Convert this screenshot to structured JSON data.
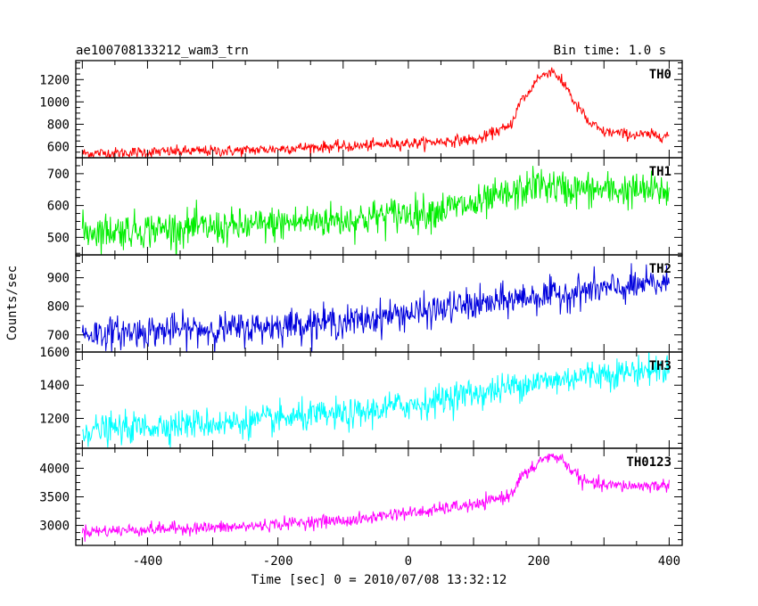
{
  "header": {
    "title": "ae100708133212_wam3_trn",
    "bin_time": "Bin time: 1.0 s"
  },
  "chart_data": {
    "type": "line",
    "xlabel": "Time [sec] 0 = 2010/07/08 13:32:12",
    "ylabel": "Counts/sec",
    "xlim": [
      -510,
      420
    ],
    "x_ticks": [
      -400,
      -200,
      0,
      200,
      400
    ],
    "x_range": [
      -500,
      400
    ],
    "bin_time_s": 1.0,
    "panels": [
      {
        "name": "TH0",
        "color": "#ff0000",
        "ylim": [
          500,
          1370
        ],
        "y_ticks": [
          600,
          800,
          1000,
          1200
        ],
        "anchors": [
          [
            -500,
            540
          ],
          [
            -300,
            560
          ],
          [
            -100,
            600
          ],
          [
            0,
            630
          ],
          [
            100,
            660
          ],
          [
            150,
            760
          ],
          [
            180,
            1050
          ],
          [
            200,
            1220
          ],
          [
            220,
            1280
          ],
          [
            240,
            1150
          ],
          [
            260,
            950
          ],
          [
            280,
            800
          ],
          [
            300,
            730
          ],
          [
            350,
            705
          ],
          [
            400,
            700
          ]
        ],
        "noise": 25
      },
      {
        "name": "TH1",
        "color": "#00ee00",
        "ylim": [
          445,
          750
        ],
        "y_ticks": [
          500,
          600,
          700
        ],
        "anchors": [
          [
            -500,
            520
          ],
          [
            -300,
            530
          ],
          [
            -100,
            555
          ],
          [
            0,
            575
          ],
          [
            100,
            600
          ],
          [
            150,
            630
          ],
          [
            200,
            665
          ],
          [
            250,
            650
          ],
          [
            300,
            648
          ],
          [
            400,
            645
          ]
        ],
        "noise": 28
      },
      {
        "name": "TH2",
        "color": "#0000dd",
        "ylim": [
          640,
          980
        ],
        "y_ticks": [
          700,
          800,
          900
        ],
        "anchors": [
          [
            -500,
            705
          ],
          [
            -300,
            720
          ],
          [
            -100,
            745
          ],
          [
            0,
            775
          ],
          [
            100,
            805
          ],
          [
            200,
            835
          ],
          [
            300,
            860
          ],
          [
            400,
            880
          ]
        ],
        "noise": 28
      },
      {
        "name": "TH3",
        "color": "#00ffff",
        "ylim": [
          1020,
          1600
        ],
        "y_ticks": [
          1200,
          1400,
          1600
        ],
        "anchors": [
          [
            -500,
            1130
          ],
          [
            -300,
            1170
          ],
          [
            -100,
            1220
          ],
          [
            0,
            1280
          ],
          [
            100,
            1350
          ],
          [
            200,
            1420
          ],
          [
            300,
            1470
          ],
          [
            400,
            1500
          ]
        ],
        "noise": 45
      },
      {
        "name": "TH0123",
        "color": "#ff00ff",
        "ylim": [
          2650,
          4350
        ],
        "y_ticks": [
          3000,
          3500,
          4000
        ],
        "anchors": [
          [
            -500,
            2900
          ],
          [
            -300,
            2960
          ],
          [
            -100,
            3080
          ],
          [
            0,
            3220
          ],
          [
            100,
            3350
          ],
          [
            150,
            3500
          ],
          [
            180,
            3900
          ],
          [
            210,
            4180
          ],
          [
            230,
            4200
          ],
          [
            250,
            3980
          ],
          [
            270,
            3760
          ],
          [
            300,
            3700
          ],
          [
            350,
            3690
          ],
          [
            400,
            3700
          ]
        ],
        "noise": 55
      }
    ]
  }
}
